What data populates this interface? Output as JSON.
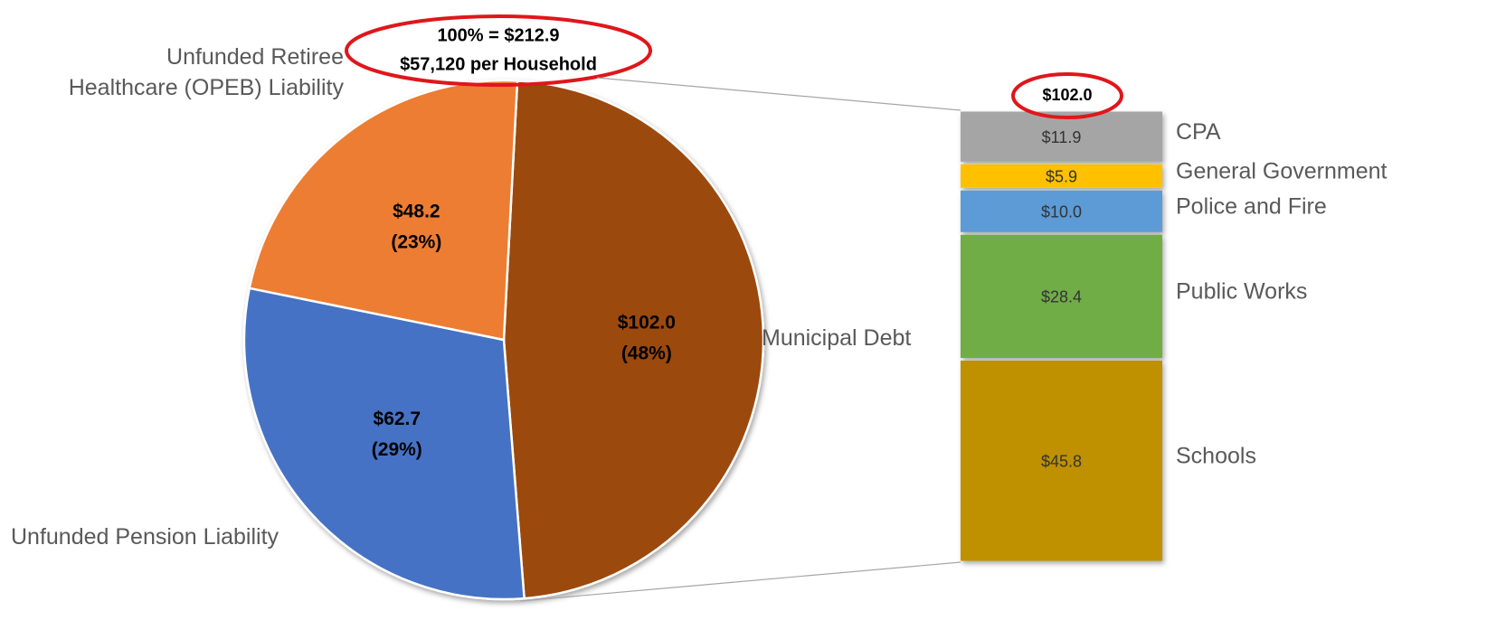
{
  "chart_data": [
    {
      "type": "pie",
      "total_label": "100% = $212.9",
      "household_label": "$57,120 per Household",
      "categories": [
        "Municipal Debt",
        "Unfunded Pension Liability",
        "Unfunded Retiree\nHealthcare (OPEB) Liability"
      ],
      "values": [
        102.0,
        62.7,
        48.2
      ],
      "value_labels": [
        "$102.0",
        "$62.7",
        "$48.2"
      ],
      "percents": [
        48,
        29,
        23
      ],
      "percent_labels": [
        "(48%)",
        "(29%)",
        "(23%)"
      ],
      "colors": [
        "#9c4a0f",
        "#4472c4",
        "#ed7d31"
      ]
    },
    {
      "type": "stacked-bar",
      "total_label": "$102.0",
      "categories": [
        "Schools",
        "Public Works",
        "Police and Fire",
        "General Government",
        "CPA"
      ],
      "values": [
        45.8,
        28.4,
        10.0,
        5.9,
        11.9
      ],
      "value_labels": [
        "$45.8",
        "$28.4",
        "$10.0",
        "$5.9",
        "$11.9"
      ],
      "colors": [
        "#bf9000",
        "#70ad47",
        "#5b9bd5",
        "#ffc000",
        "#a5a5a5"
      ]
    }
  ]
}
